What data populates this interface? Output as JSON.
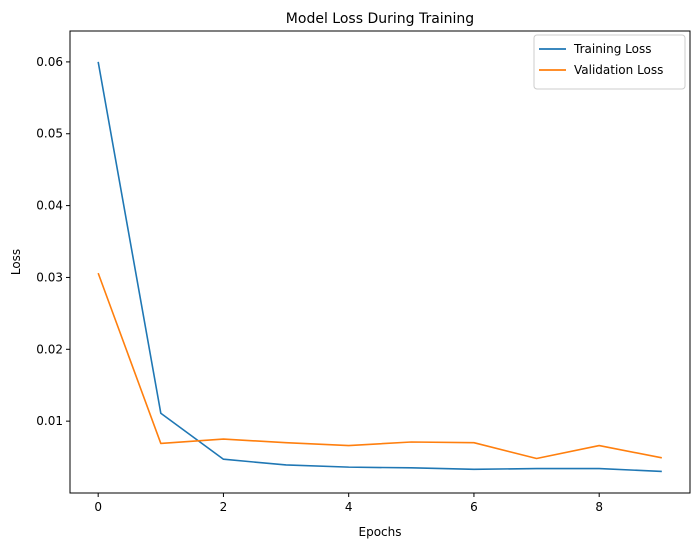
{
  "chart_data": {
    "type": "line",
    "title": "Model Loss During Training",
    "xlabel": "Epochs",
    "ylabel": "Loss",
    "x": [
      0,
      1,
      2,
      3,
      4,
      5,
      6,
      7,
      8,
      9
    ],
    "xlim": [
      -0.45,
      9.45
    ],
    "ylim": [
      0.0,
      0.0643
    ],
    "xticks": [
      0,
      2,
      4,
      6,
      8
    ],
    "xtick_labels": [
      "0",
      "2",
      "4",
      "6",
      "8"
    ],
    "yticks": [
      0.01,
      0.02,
      0.03,
      0.04,
      0.05,
      0.06
    ],
    "ytick_labels": [
      "0.01",
      "0.02",
      "0.03",
      "0.04",
      "0.05",
      "0.06"
    ],
    "grid": false,
    "legend_position": "top-right",
    "series": [
      {
        "name": "Training Loss",
        "color": "#1f77b4",
        "values": [
          0.06,
          0.0111,
          0.0047,
          0.0039,
          0.0036,
          0.0035,
          0.0033,
          0.0034,
          0.0034,
          0.003
        ]
      },
      {
        "name": "Validation Loss",
        "color": "#ff7f0e",
        "values": [
          0.0306,
          0.0069,
          0.0075,
          0.007,
          0.0066,
          0.0071,
          0.007,
          0.0048,
          0.0066,
          0.0049
        ]
      }
    ]
  }
}
